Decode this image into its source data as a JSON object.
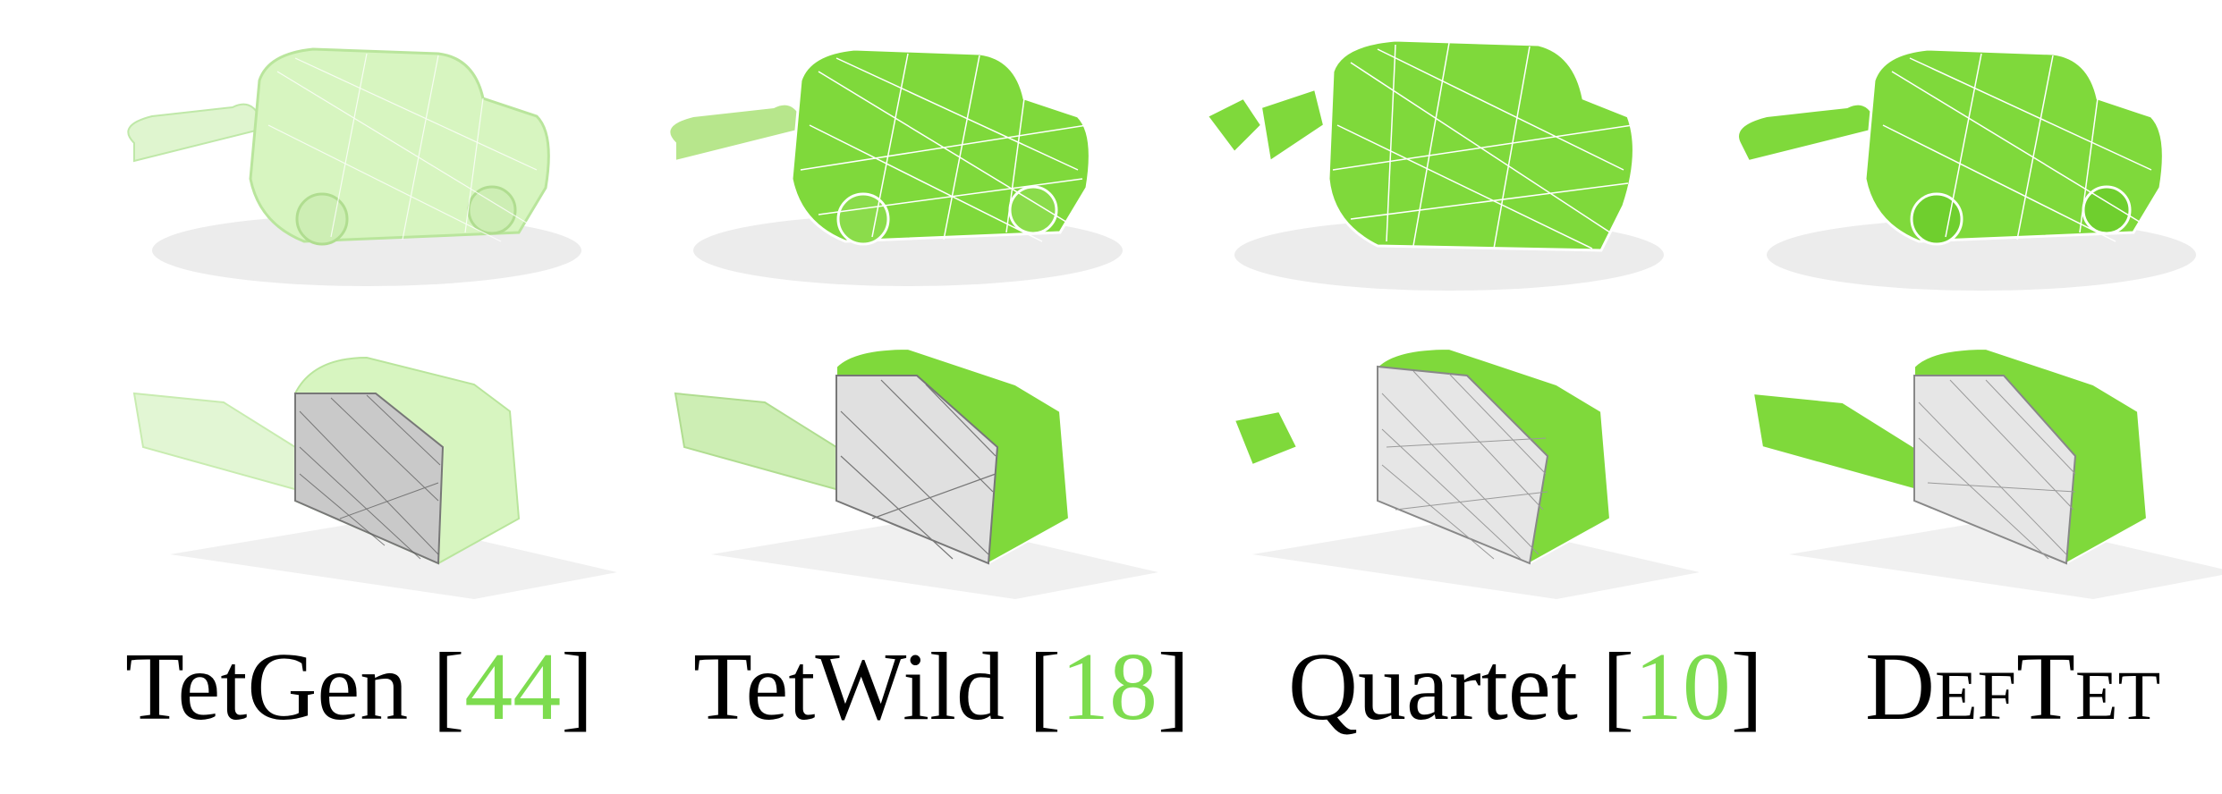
{
  "figure": {
    "methods": [
      {
        "name": "TetGen ",
        "bracket_open": "[",
        "ref": "44",
        "bracket_close": "]"
      },
      {
        "name": "TetWild ",
        "bracket_open": "[",
        "ref": "18",
        "bracket_close": "]"
      },
      {
        "name": "Quartet ",
        "bracket_open": "[",
        "ref": "10",
        "bracket_close": "]"
      },
      {
        "name_parts": [
          "D",
          "EF",
          "T",
          "ET"
        ]
      }
    ],
    "colors": {
      "mesh_green": "#7fd93b",
      "pale_green": "#d7f5c0",
      "interior_gray": "#d9d9d9",
      "citation_green": "#7ddc4f",
      "shadow": "#e6e6e6"
    }
  }
}
